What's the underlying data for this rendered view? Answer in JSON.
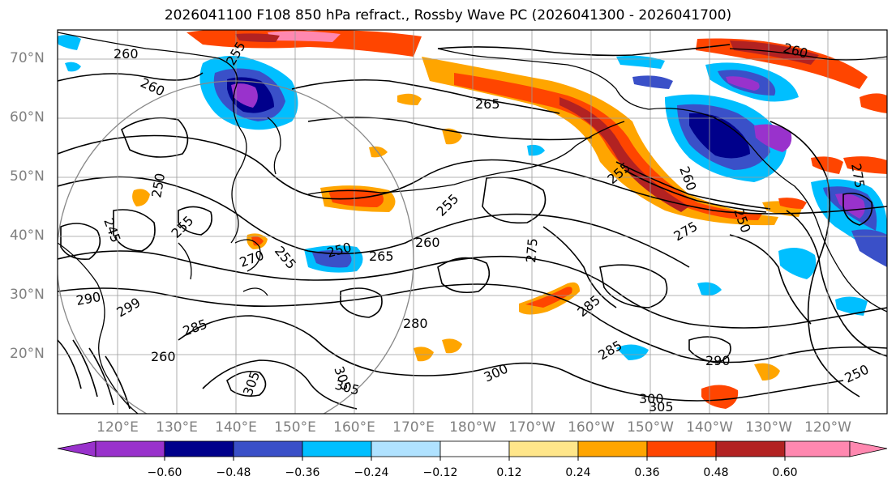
{
  "title": "2026041100 F108 850 hPa refract., Rossby Wave PC (2026041300 - 2026041700)",
  "map": {
    "lat_labels": [
      "70°N",
      "60°N",
      "50°N",
      "40°N",
      "30°N",
      "20°N"
    ],
    "lon_labels": [
      "120°E",
      "130°E",
      "140°E",
      "150°E",
      "160°E",
      "170°E",
      "180°W",
      "170°W",
      "160°W",
      "150°W",
      "140°W",
      "130°W",
      "120°W"
    ],
    "contour_labels": [
      "260",
      "260",
      "255",
      "265",
      "260",
      "255",
      "250",
      "245",
      "255",
      "255",
      "270",
      "250",
      "265",
      "260",
      "255",
      "275",
      "280",
      "285",
      "275",
      "290",
      "299",
      "285",
      "260",
      "305",
      "305",
      "300",
      "290",
      "285",
      "300",
      "305",
      "305",
      "250",
      "250",
      "260",
      "275"
    ]
  },
  "colorbar": {
    "ticks": [
      "−0.60",
      "−0.48",
      "−0.36",
      "−0.24",
      "−0.12",
      "0.12",
      "0.24",
      "0.36",
      "0.48",
      "0.60"
    ],
    "colors": [
      "#9932CC",
      "#00008B",
      "#3A50C8",
      "#00BFFF",
      "#B0E2FF",
      "#FFFFFF",
      "#FFE68A",
      "#FFA500",
      "#FF4500",
      "#B22222",
      "#FF88B0"
    ]
  }
}
